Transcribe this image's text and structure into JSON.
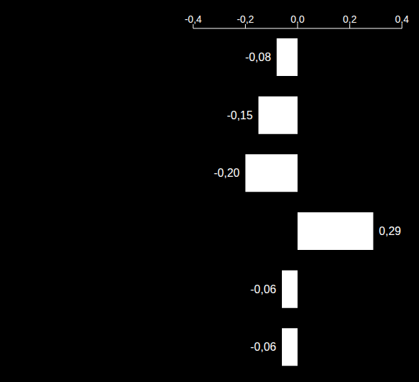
{
  "chart_data": {
    "type": "bar",
    "orientation": "horizontal",
    "categories": [
      null,
      null,
      null,
      null,
      null,
      null
    ],
    "values": [
      -0.08,
      -0.15,
      -0.2,
      0.29,
      -0.06,
      -0.06
    ],
    "value_labels": [
      "-0,08",
      "-0,15",
      "-0,20",
      "0,29",
      "-0,06",
      "-0,06"
    ],
    "data_labels": true,
    "color": "#ffffff",
    "xlim": [
      -0.4,
      0.4
    ],
    "xticks": [
      {
        "value": -0.4,
        "label": "-0,4"
      },
      {
        "value": -0.2,
        "label": "-0,2"
      },
      {
        "value": 0,
        "label": "0,0"
      },
      {
        "value": 0.2,
        "label": "0,2"
      },
      {
        "value": 0.4,
        "label": "0,4"
      }
    ],
    "grid": false
  }
}
